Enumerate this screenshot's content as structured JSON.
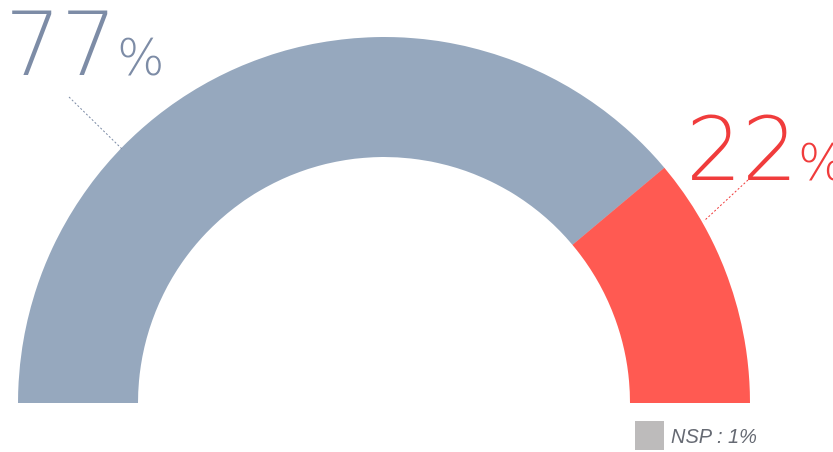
{
  "chart_data": {
    "type": "pie",
    "subtype": "half-donut",
    "title": "",
    "series": [
      {
        "name": "",
        "value": 77,
        "label": "77",
        "unit": "%",
        "color": "#96a8be",
        "label_color": "#7d8ca6"
      },
      {
        "name": "",
        "value": 22,
        "label": "22",
        "unit": "%",
        "color": "#ff5a52",
        "label_color": "#f03c3c"
      }
    ],
    "legend": {
      "text": "NSP : 1%",
      "value": 1,
      "swatch_color": "#bdbbbb",
      "placement": "bottom-right"
    }
  }
}
